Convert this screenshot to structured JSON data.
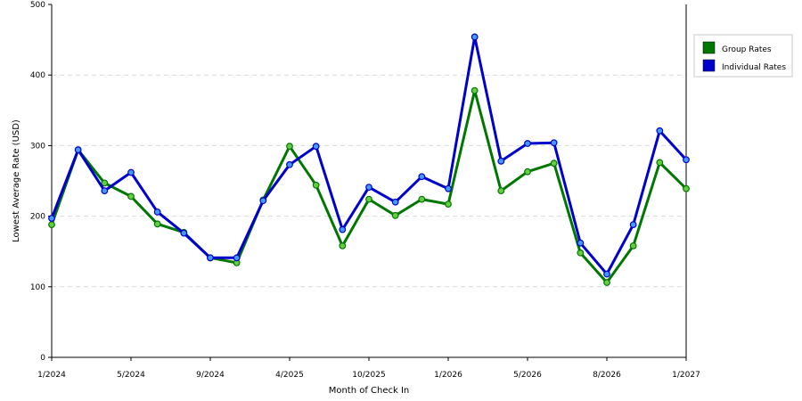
{
  "chart_data": {
    "type": "line",
    "xlabel": "Month of Check In",
    "ylabel": "Lowest Average Rate (USD)",
    "ylim": [
      0,
      500
    ],
    "yticks": [
      0,
      100,
      200,
      300,
      400,
      500
    ],
    "grid": true,
    "legend_placement": "right",
    "x_tick_labels": [
      "1/2024",
      "5/2024",
      "9/2024",
      "4/2025",
      "10/2025",
      "1/2026",
      "5/2026",
      "8/2026",
      "1/2027"
    ],
    "series": [
      {
        "name": "Group Rates",
        "color": "#007700",
        "values": [
          188,
          294,
          247,
          228,
          189,
          177,
          141,
          134,
          223,
          299,
          244,
          158,
          224,
          201,
          224,
          217,
          378,
          236,
          263,
          275,
          148,
          106,
          158,
          276,
          239
        ]
      },
      {
        "name": "Individual Rates",
        "color": "#0000cc",
        "values": [
          197,
          294,
          236,
          262,
          206,
          176,
          141,
          141,
          222,
          273,
          299,
          181,
          241,
          220,
          256,
          239,
          454,
          278,
          303,
          304,
          162,
          118,
          188,
          321,
          280
        ]
      }
    ]
  }
}
